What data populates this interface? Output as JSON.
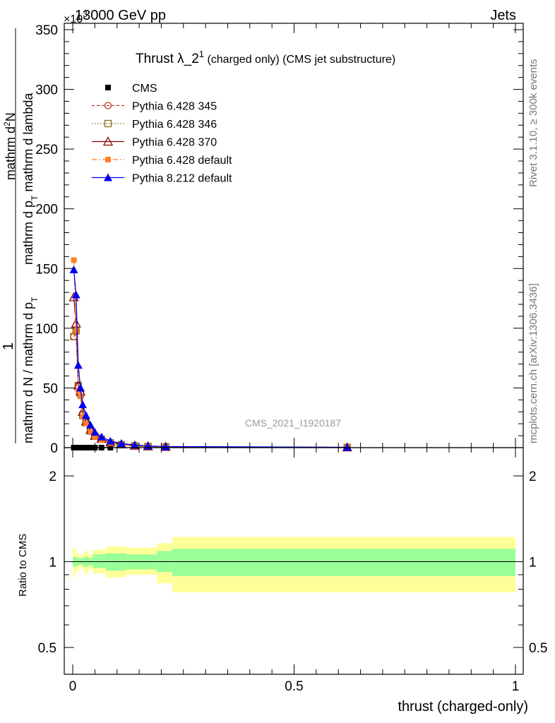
{
  "header": {
    "energy_label": "13000 GeV pp",
    "process_label": "Jets",
    "exponent_label": "×10",
    "exponent_sup": "3"
  },
  "side_texts": {
    "rivet": "Rivet 3.1.10, ≥ 300k events",
    "mcplots": "mcplots.cern.ch [arXiv:1306.3436]"
  },
  "plot_title": {
    "main": "Thrust λ_2",
    "sup": "1",
    "rest": " (charged only) (CMS jet substructure)"
  },
  "watermark": "CMS_2021_I1920187",
  "top_ylabel": {
    "numerator_line1": "mathrm d",
    "numerator_sup": "2",
    "numerator_line1_end": "N",
    "numerator_line2": "mathrm d p",
    "numerator_line2_sub": "T",
    "numerator_line2_end": " mathrm d lambda",
    "one": "1",
    "denominator": "mathrm d N / mathrm d p",
    "denominator_sub": "T"
  },
  "bottom_ylabel": "Ratio to CMS",
  "xlabel": "thrust (charged-only)",
  "colors": {
    "cms": "#000000",
    "p345": "#c0392b",
    "p346": "#8b6914",
    "p370": "#8b0000",
    "pdef": "#ff7f2a",
    "p8": "#0000ee",
    "band_inner": "#99ff99",
    "band_outer": "#ffff99"
  },
  "chart_data": [
    {
      "type": "line",
      "panel": "main",
      "ylim": [
        0,
        350000
      ],
      "xlim": [
        -0.01,
        1.0
      ],
      "y_ticks": [
        0,
        50,
        100,
        150,
        200,
        250,
        300,
        350
      ],
      "y_multiplier_note": "×10^3",
      "series": [
        {
          "name": "CMS",
          "style": "cms",
          "x": [
            0.0025,
            0.0075,
            0.0125,
            0.0175,
            0.0225,
            0.03,
            0.04,
            0.05,
            0.065,
            0.085
          ],
          "y": [
            0,
            0,
            0,
            0,
            0,
            0,
            0,
            0,
            0,
            0
          ]
        },
        {
          "name": "Pythia 6.428 345",
          "style": "p345",
          "x": [
            0.0025,
            0.0075,
            0.0125,
            0.0175,
            0.0225,
            0.03,
            0.04,
            0.05,
            0.065,
            0.085,
            0.11,
            0.14,
            0.17,
            0.21,
            0.62
          ],
          "y": [
            93000,
            97000,
            52000,
            45000,
            28000,
            22000,
            14000,
            10000,
            7000,
            4000,
            2500,
            1500,
            1000,
            600,
            200
          ]
        },
        {
          "name": "Pythia 6.428 346",
          "style": "p346",
          "x": [
            0.0025,
            0.0075,
            0.0125,
            0.0175,
            0.0225,
            0.03,
            0.04,
            0.05,
            0.065,
            0.085,
            0.11,
            0.14,
            0.17,
            0.21,
            0.62
          ],
          "y": [
            93000,
            98000,
            52000,
            45000,
            27000,
            21000,
            14000,
            9500,
            7000,
            4000,
            2500,
            1500,
            1000,
            600,
            200
          ]
        },
        {
          "name": "Pythia 6.428 370",
          "style": "p370",
          "x": [
            0.0025,
            0.0075,
            0.0125,
            0.0175,
            0.0225,
            0.03,
            0.04,
            0.05,
            0.065,
            0.085,
            0.11,
            0.14,
            0.17,
            0.21,
            0.62
          ],
          "y": [
            126000,
            104000,
            52000,
            47000,
            30000,
            22000,
            15000,
            10000,
            7500,
            4500,
            2800,
            1700,
            1100,
            700,
            200
          ]
        },
        {
          "name": "Pythia 6.428 default",
          "style": "pdef",
          "x": [
            0.0025,
            0.0075,
            0.0125,
            0.0175,
            0.0225,
            0.03,
            0.04,
            0.05,
            0.065,
            0.085,
            0.11,
            0.14,
            0.17,
            0.21,
            0.62
          ],
          "y": [
            157000,
            98000,
            48000,
            43000,
            26000,
            20000,
            13000,
            9000,
            6500,
            4000,
            2400,
            1400,
            900,
            500,
            200
          ]
        },
        {
          "name": "Pythia 8.212 default",
          "style": "p8",
          "x": [
            0.0025,
            0.0075,
            0.0125,
            0.0175,
            0.0225,
            0.03,
            0.04,
            0.05,
            0.065,
            0.085,
            0.11,
            0.14,
            0.17,
            0.21,
            0.62
          ],
          "y": [
            149000,
            128000,
            69000,
            50000,
            36000,
            27000,
            19000,
            13000,
            9000,
            5500,
            3500,
            2200,
            1400,
            900,
            300
          ]
        }
      ]
    },
    {
      "type": "area",
      "panel": "ratio",
      "ylim": [
        0.4,
        2.4
      ],
      "y_ticks": [
        0.5,
        1,
        2
      ],
      "x_ticks": [
        0,
        0.5,
        1
      ],
      "ylabel": "Ratio to CMS",
      "xlabel": "thrust (charged-only)",
      "bins": [
        {
          "x0": 0.0,
          "x1": 0.005,
          "inner": [
            0.96,
            1.04
          ],
          "outer": [
            0.88,
            1.12
          ]
        },
        {
          "x0": 0.005,
          "x1": 0.01,
          "inner": [
            0.96,
            1.04
          ],
          "outer": [
            0.92,
            1.1
          ]
        },
        {
          "x0": 0.01,
          "x1": 0.015,
          "inner": [
            0.97,
            1.03
          ],
          "outer": [
            0.93,
            1.07
          ]
        },
        {
          "x0": 0.015,
          "x1": 0.02,
          "inner": [
            0.98,
            1.03
          ],
          "outer": [
            0.96,
            1.05
          ]
        },
        {
          "x0": 0.02,
          "x1": 0.025,
          "inner": [
            0.97,
            1.03
          ],
          "outer": [
            0.94,
            1.06
          ]
        },
        {
          "x0": 0.025,
          "x1": 0.035,
          "inner": [
            0.96,
            1.04
          ],
          "outer": [
            0.91,
            1.09
          ]
        },
        {
          "x0": 0.035,
          "x1": 0.045,
          "inner": [
            0.97,
            1.03
          ],
          "outer": [
            0.94,
            1.06
          ]
        },
        {
          "x0": 0.045,
          "x1": 0.06,
          "inner": [
            0.95,
            1.06
          ],
          "outer": [
            0.91,
            1.1
          ]
        },
        {
          "x0": 0.06,
          "x1": 0.075,
          "inner": [
            0.95,
            1.06
          ],
          "outer": [
            0.91,
            1.1
          ]
        },
        {
          "x0": 0.075,
          "x1": 0.12,
          "inner": [
            0.93,
            1.07
          ],
          "outer": [
            0.88,
            1.13
          ]
        },
        {
          "x0": 0.12,
          "x1": 0.19,
          "inner": [
            0.94,
            1.06
          ],
          "outer": [
            0.9,
            1.12
          ]
        },
        {
          "x0": 0.19,
          "x1": 0.225,
          "inner": [
            0.92,
            1.09
          ],
          "outer": [
            0.84,
            1.16
          ]
        },
        {
          "x0": 0.225,
          "x1": 1.0,
          "inner": [
            0.89,
            1.11
          ],
          "outer": [
            0.78,
            1.22
          ]
        }
      ]
    }
  ]
}
